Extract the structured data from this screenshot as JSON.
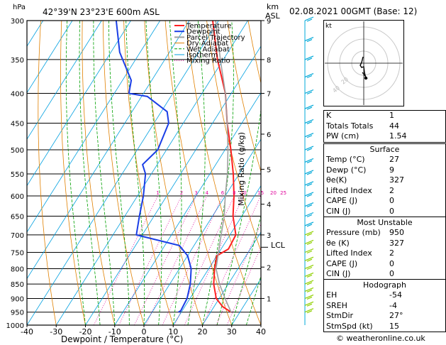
{
  "header": {
    "pressure_unit": "hPa",
    "location": "42°39'N  23°23'E  600m  ASL",
    "alt_unit_1": "km",
    "alt_unit_2": "ASL",
    "datetime": "02.08.2021  00GMT  (Base: 12)"
  },
  "footer": {
    "credit": "© weatheronline.co.uk"
  },
  "colors": {
    "temperature": "#ff2020",
    "dewpoint": "#1a3ee6",
    "parcel": "#a0a0a0",
    "dry_adiabat": "#e08000",
    "wet_adiabat": "#00a000",
    "isotherm": "#00a0e0",
    "mixing_ratio": "#e0009a",
    "wind": "#00a8d8",
    "wind_low": "#90d000"
  },
  "legend": [
    "Temperature",
    "Dewpoint",
    "Parcel Trajectory",
    "Dry Adiabat",
    "Wet Adiabat",
    "Isotherm",
    "Mixing Ratio"
  ],
  "chart_data": {
    "type": "line",
    "title": "42°39'N  23°23'E  600m  ASL",
    "xlabel": "Dewpoint / Temperature (°C)",
    "ylabel": "hPa",
    "right_label": "Mixing Ratio (g/kg)",
    "xlim": [
      -40,
      40
    ],
    "ylim": [
      1000,
      300
    ],
    "x_ticks": [
      "-40",
      "-30",
      "-20",
      "-10",
      "0",
      "10",
      "20",
      "30",
      "40"
    ],
    "pressure_ticks": [
      "300",
      "350",
      "400",
      "450",
      "500",
      "550",
      "600",
      "650",
      "700",
      "750",
      "800",
      "850",
      "900",
      "950",
      "1000"
    ],
    "km_ticks": [
      {
        "p": 300,
        "label": "9"
      },
      {
        "p": 350,
        "label": "8"
      },
      {
        "p": 400,
        "label": "7"
      },
      {
        "p": 470,
        "label": "6"
      },
      {
        "p": 540,
        "label": "5"
      },
      {
        "p": 620,
        "label": "4"
      },
      {
        "p": 700,
        "label": "3"
      },
      {
        "p": 795,
        "label": "2"
      },
      {
        "p": 900,
        "label": "1"
      }
    ],
    "lcl_label": "LCL",
    "lcl_pressure": 735,
    "mixing_ratio_labels": [
      "1",
      "2",
      "3",
      "4",
      "6",
      "8",
      "10",
      "15",
      "20",
      "25"
    ],
    "series": [
      {
        "name": "Temperature",
        "points": [
          [
            950,
            27
          ],
          [
            930,
            23
          ],
          [
            900,
            19
          ],
          [
            850,
            15
          ],
          [
            800,
            12
          ],
          [
            760,
            10
          ],
          [
            740,
            12.5
          ],
          [
            700,
            12
          ],
          [
            650,
            7
          ],
          [
            600,
            3
          ],
          [
            550,
            -2
          ],
          [
            500,
            -8
          ],
          [
            450,
            -15
          ],
          [
            400,
            -22
          ],
          [
            350,
            -32
          ],
          [
            300,
            -42
          ]
        ]
      },
      {
        "name": "Dewpoint",
        "points": [
          [
            950,
            9
          ],
          [
            945,
            9.5
          ],
          [
            900,
            9
          ],
          [
            850,
            7
          ],
          [
            800,
            4
          ],
          [
            760,
            0
          ],
          [
            730,
            -5
          ],
          [
            700,
            -22
          ],
          [
            650,
            -25
          ],
          [
            600,
            -28
          ],
          [
            550,
            -32
          ],
          [
            530,
            -35
          ],
          [
            500,
            -33
          ],
          [
            450,
            -35
          ],
          [
            430,
            -38
          ],
          [
            405,
            -48
          ],
          [
            400,
            -55
          ],
          [
            380,
            -57
          ],
          [
            340,
            -67
          ],
          [
            300,
            -75
          ]
        ]
      },
      {
        "name": "Parcel Trajectory",
        "points": [
          [
            950,
            27
          ],
          [
            900,
            22
          ],
          [
            850,
            17
          ],
          [
            800,
            12.5
          ],
          [
            735,
            9
          ],
          [
            700,
            7
          ],
          [
            650,
            4
          ],
          [
            600,
            0
          ],
          [
            550,
            -4
          ],
          [
            500,
            -9
          ],
          [
            450,
            -15
          ],
          [
            400,
            -22
          ],
          [
            350,
            -31
          ],
          [
            300,
            -41
          ]
        ]
      }
    ]
  },
  "indices": [
    {
      "label": "K",
      "value": "1"
    },
    {
      "label": "Totals Totals",
      "value": "44"
    },
    {
      "label": "PW (cm)",
      "value": "1.54"
    }
  ],
  "surface": {
    "title": "Surface",
    "rows": [
      {
        "label": "Temp (°C)",
        "value": "27"
      },
      {
        "label": "Dewp (°C)",
        "value": "9"
      },
      {
        "label": "θe(K)",
        "value": "327"
      },
      {
        "label": "Lifted Index",
        "value": "2"
      },
      {
        "label": "CAPE (J)",
        "value": "0"
      },
      {
        "label": "CIN (J)",
        "value": "0"
      }
    ]
  },
  "most_unstable": {
    "title": "Most Unstable",
    "rows": [
      {
        "label": "Pressure (mb)",
        "value": "950"
      },
      {
        "label": "θe (K)",
        "value": "327"
      },
      {
        "label": "Lifted Index",
        "value": "2"
      },
      {
        "label": "CAPE (J)",
        "value": "0"
      },
      {
        "label": "CIN (J)",
        "value": "0"
      }
    ]
  },
  "hodograph": {
    "title": "Hodograph",
    "kt_label": "kt",
    "ring_labels": [
      "20",
      "40"
    ],
    "rows": [
      {
        "label": "EH",
        "value": "-54"
      },
      {
        "label": "SREH",
        "value": "-4"
      },
      {
        "label": "StmDir",
        "value": "27°"
      },
      {
        "label": "StmSpd (kt)",
        "value": "15"
      }
    ]
  }
}
